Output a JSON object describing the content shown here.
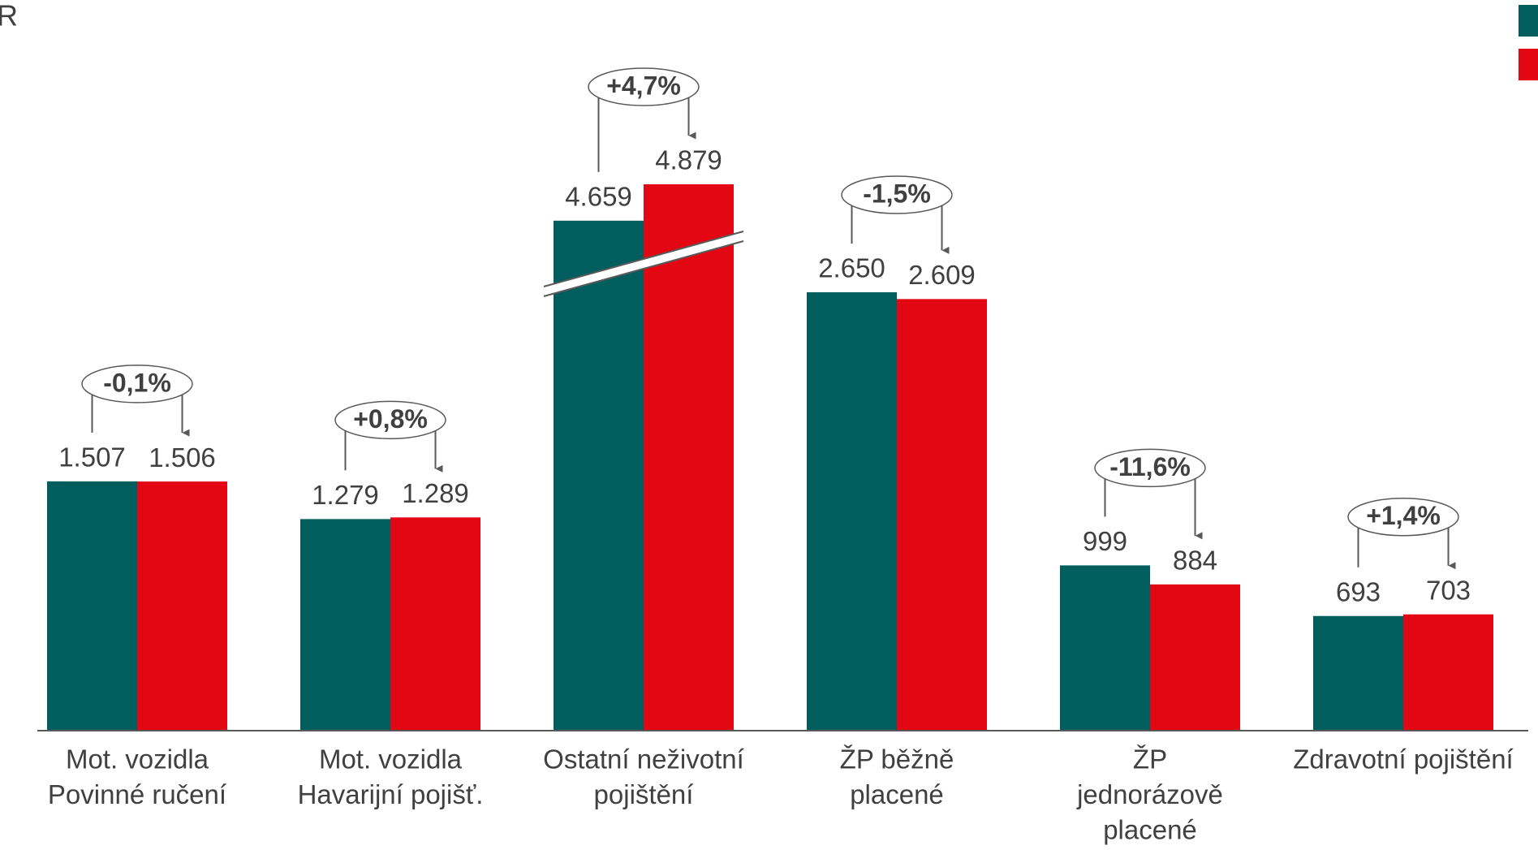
{
  "chart_data": {
    "type": "bar",
    "title": "R",
    "categories": [
      [
        "Mot. vozidla",
        "Povinné ručení"
      ],
      [
        "Mot. vozidla",
        "Havarijní pojišť."
      ],
      [
        "Ostatní neživotní",
        "pojištění"
      ],
      [
        "ŽP běžně",
        "placené"
      ],
      [
        "ŽP",
        "jednorázově",
        "placené"
      ],
      [
        "Zdravotní pojištění"
      ]
    ],
    "series": [
      {
        "color": "#005e5e",
        "values": [
          1507,
          1279,
          4659,
          2650,
          999,
          693
        ],
        "value_labels": [
          "1.507",
          "1.279",
          "4.659",
          "2.650",
          "999",
          "693"
        ]
      },
      {
        "color": "#e30613",
        "values": [
          1506,
          1289,
          4879,
          2609,
          884,
          703
        ],
        "value_labels": [
          "1.506",
          "1.289",
          "4.879",
          "2.609",
          "884",
          "703"
        ]
      }
    ],
    "annotations": [
      "-0,1%",
      "+0,8%",
      "+4,7%",
      "-1,5%",
      "-11,6%",
      "+1,4%"
    ],
    "axis_break": true
  }
}
